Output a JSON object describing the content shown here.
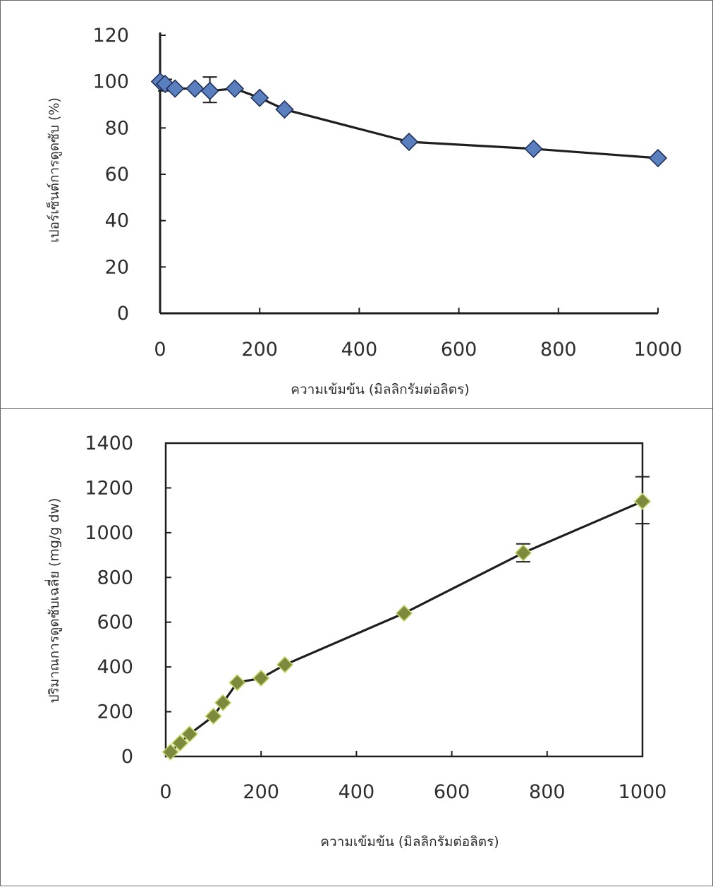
{
  "chart_data": [
    {
      "type": "line",
      "title": "",
      "xlabel": "ความเข้มข้น (มิลลิกรัมต่อลิตร)",
      "ylabel": "เปอร์เซ็นต์การดูดซับ (%)",
      "xlim": [
        0,
        1000
      ],
      "ylim": [
        0,
        120
      ],
      "xticks": [
        "0",
        "200",
        "400",
        "600",
        "800",
        "1000"
      ],
      "yticks": [
        "0",
        "20",
        "40",
        "60",
        "80",
        "100",
        "120"
      ],
      "x": [
        0,
        10,
        30,
        70,
        100,
        150,
        200,
        250,
        500,
        750,
        1000
      ],
      "values": [
        100,
        99,
        97,
        97,
        96,
        97,
        93,
        88,
        74,
        71,
        67
      ],
      "error_bars": [
        {
          "x": 10,
          "low": 96,
          "high": 101
        },
        {
          "x": 100,
          "low": 91,
          "high": 102
        }
      ],
      "marker": "diamond",
      "marker_color": "#5a7fbf",
      "line_color": "#1e1e1e",
      "grid": false,
      "frame": "left and bottom axes only"
    },
    {
      "type": "line",
      "title": "",
      "xlabel": "ความเข้มข้น (มิลลิกรัมต่อลิตร)",
      "ylabel": "ปริมาณการดูดซับเฉลี่ย (mg/g dw)",
      "xlim": [
        0,
        1000
      ],
      "ylim": [
        0,
        1400
      ],
      "xticks": [
        "0",
        "200",
        "400",
        "600",
        "800",
        "1000"
      ],
      "yticks": [
        "0",
        "200",
        "400",
        "600",
        "800",
        "1000",
        "1200",
        "1400"
      ],
      "x": [
        10,
        30,
        50,
        100,
        120,
        150,
        200,
        250,
        500,
        750,
        1000
      ],
      "values": [
        20,
        60,
        100,
        180,
        240,
        330,
        350,
        410,
        640,
        910,
        1140
      ],
      "error_bars": [
        {
          "x": 750,
          "low": 870,
          "high": 950
        },
        {
          "x": 1000,
          "low": 1040,
          "high": 1250
        }
      ],
      "marker": "diamond",
      "marker_color": "#7b8a3c",
      "line_color": "#1e1e1e",
      "grid": false,
      "frame": "boxed"
    }
  ]
}
